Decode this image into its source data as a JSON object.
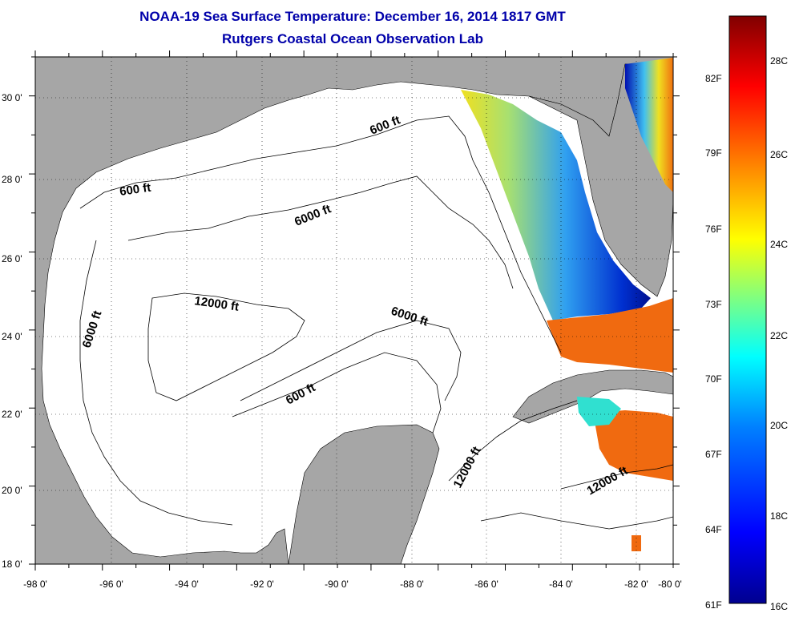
{
  "title_line1": "NOAA-19 Sea Surface Temperature:  December 16, 2014 1817 GMT",
  "title_line2": "Rutgers Coastal Ocean Observation Lab",
  "lat_labels": [
    "30 0'",
    "28 0'",
    "26 0'",
    "24 0'",
    "22 0'",
    "20 0'",
    "18 0'"
  ],
  "lon_labels": [
    "-98 0'",
    "-96 0'",
    "-94 0'",
    "-92 0'",
    "-90 0'",
    "-88 0'",
    "-86 0'",
    "-84 0'",
    "-82 0'",
    "-80 0'"
  ],
  "contour_labels": {
    "c600_a": "600 ft",
    "c600_b": "600 ft",
    "c600_c": "600 ft",
    "c6000_a": "6000 ft",
    "c6000_b": "6000 ft",
    "c6000_c": "6000 ft",
    "c12000_a": "12000 ft",
    "c12000_b": "12000 ft",
    "c12000_c": "12000 ft"
  },
  "colorbar": {
    "fahrenheit": [
      "82F",
      "79F",
      "76F",
      "73F",
      "70F",
      "67F",
      "64F",
      "61F"
    ],
    "celsius": [
      "28C",
      "26C",
      "24C",
      "22C",
      "20C",
      "18C",
      "16C"
    ],
    "colors": [
      "#00008f",
      "#0000ff",
      "#0080ff",
      "#00ffff",
      "#80ff80",
      "#ffff00",
      "#ff8000",
      "#ff0000",
      "#800000"
    ]
  },
  "colors": {
    "land": "#a6a6a6",
    "ocean_nodata": "#ffffff",
    "title": "#0000aa"
  }
}
